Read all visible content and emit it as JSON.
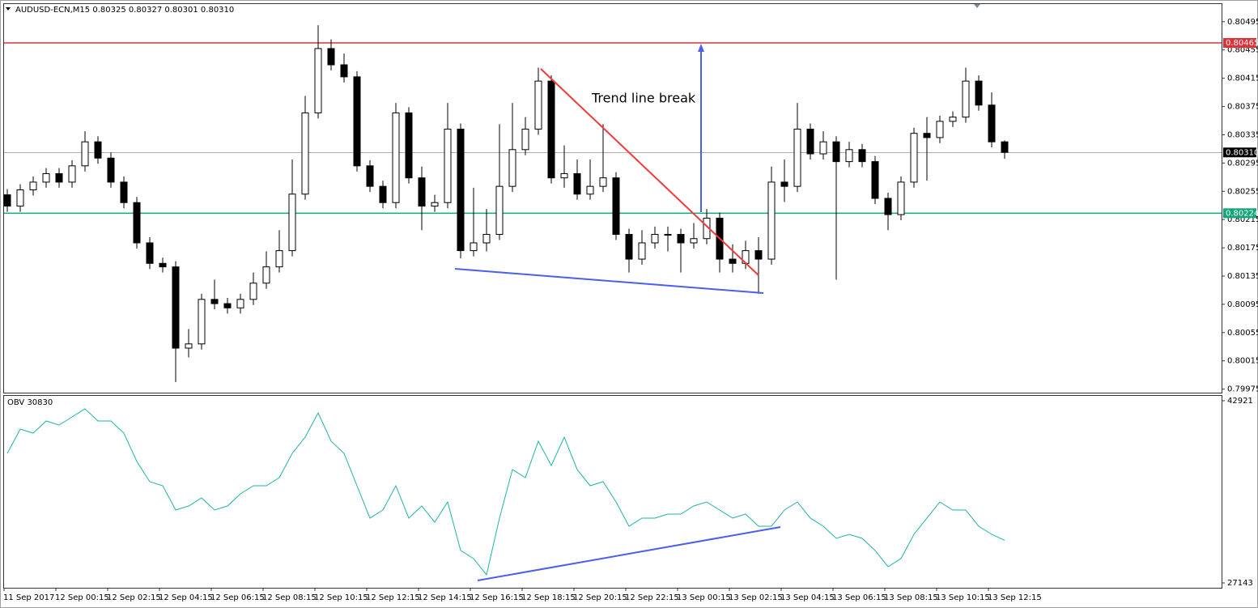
{
  "chart_data": [
    {
      "type": "candlestick",
      "title": "AUDUSD-ECN,M15  0.80325 0.80327 0.80301 0.80310",
      "annotation": "Trend line break",
      "up_color": "#ffffff",
      "down_color": "#000000",
      "categories": [
        "11 Sep 2017",
        null,
        null,
        null,
        "12 Sep 00:15",
        null,
        null,
        null,
        "12 Sep 02:15",
        null,
        null,
        null,
        "12 Sep 04:15",
        null,
        null,
        null,
        "12 Sep 06:15",
        null,
        null,
        null,
        "12 Sep 08:15",
        null,
        null,
        null,
        "12 Sep 10:15",
        null,
        null,
        null,
        "12 Sep 12:15",
        null,
        null,
        null,
        "12 Sep 14:15",
        null,
        null,
        null,
        "12 Sep 16:15",
        null,
        null,
        null,
        "12 Sep 18:15",
        null,
        null,
        null,
        "12 Sep 20:15",
        null,
        null,
        null,
        "12 Sep 22:15",
        null,
        null,
        null,
        "13 Sep 00:15",
        null,
        null,
        null,
        "13 Sep 02:15",
        null,
        null,
        null,
        "13 Sep 04:15",
        null,
        null,
        null,
        "13 Sep 06:15",
        null,
        null,
        null,
        "13 Sep 08:15",
        null,
        null,
        null,
        "13 Sep 10:15",
        null,
        null,
        null,
        "13 Sep 12:15",
        null
      ],
      "ohlc": [
        [
          0.8025,
          0.80258,
          0.80226,
          0.80234
        ],
        [
          0.80234,
          0.80265,
          0.80226,
          0.80257
        ],
        [
          0.80257,
          0.80276,
          0.80249,
          0.80268
        ],
        [
          0.80268,
          0.80288,
          0.8026,
          0.8028
        ],
        [
          0.8028,
          0.80288,
          0.8026,
          0.80268
        ],
        [
          0.80268,
          0.80299,
          0.8026,
          0.80291
        ],
        [
          0.80291,
          0.8034,
          0.80283,
          0.80325
        ],
        [
          0.80325,
          0.80333,
          0.80294,
          0.80302
        ],
        [
          0.80302,
          0.8031,
          0.8026,
          0.80268
        ],
        [
          0.80268,
          0.80276,
          0.80231,
          0.80239
        ],
        [
          0.80239,
          0.80247,
          0.80174,
          0.80182
        ],
        [
          0.80182,
          0.8019,
          0.80145,
          0.80153
        ],
        [
          0.80153,
          0.80161,
          0.8014,
          0.80148
        ],
        [
          0.80148,
          0.80156,
          0.79985,
          0.80033
        ],
        [
          0.80033,
          0.8006,
          0.8002,
          0.80039
        ],
        [
          0.80039,
          0.8011,
          0.80031,
          0.80102
        ],
        [
          0.80102,
          0.8013,
          0.80088,
          0.80096
        ],
        [
          0.80096,
          0.80104,
          0.80082,
          0.8009
        ],
        [
          0.8009,
          0.8011,
          0.80082,
          0.80102
        ],
        [
          0.80102,
          0.8014,
          0.80094,
          0.80125
        ],
        [
          0.80125,
          0.8017,
          0.80117,
          0.80148
        ],
        [
          0.80148,
          0.802,
          0.8014,
          0.80171
        ],
        [
          0.80171,
          0.803,
          0.80163,
          0.80251
        ],
        [
          0.80251,
          0.8039,
          0.80243,
          0.80366
        ],
        [
          0.80366,
          0.8049,
          0.80358,
          0.80457
        ],
        [
          0.80457,
          0.8047,
          0.80426,
          0.80434
        ],
        [
          0.80434,
          0.8045,
          0.80409,
          0.80417
        ],
        [
          0.80417,
          0.80425,
          0.80283,
          0.80291
        ],
        [
          0.80291,
          0.80299,
          0.80254,
          0.80262
        ],
        [
          0.80262,
          0.8027,
          0.80231,
          0.80239
        ],
        [
          0.80239,
          0.8038,
          0.80231,
          0.80366
        ],
        [
          0.80366,
          0.80374,
          0.80266,
          0.80274
        ],
        [
          0.80274,
          0.8029,
          0.802,
          0.80234
        ],
        [
          0.80234,
          0.8025,
          0.80226,
          0.80239
        ],
        [
          0.80239,
          0.8038,
          0.80231,
          0.80343
        ],
        [
          0.80343,
          0.80351,
          0.8016,
          0.80171
        ],
        [
          0.80171,
          0.8026,
          0.80163,
          0.80182
        ],
        [
          0.80182,
          0.8023,
          0.8017,
          0.80194
        ],
        [
          0.80194,
          0.8035,
          0.80186,
          0.80262
        ],
        [
          0.80262,
          0.8038,
          0.80254,
          0.80314
        ],
        [
          0.80314,
          0.8036,
          0.80306,
          0.80343
        ],
        [
          0.80343,
          0.8043,
          0.80335,
          0.80411
        ],
        [
          0.80411,
          0.80419,
          0.80266,
          0.80274
        ],
        [
          0.80274,
          0.8032,
          0.8026,
          0.8028
        ],
        [
          0.8028,
          0.803,
          0.80243,
          0.80251
        ],
        [
          0.80251,
          0.803,
          0.80243,
          0.80262
        ],
        [
          0.80262,
          0.8035,
          0.80254,
          0.80274
        ],
        [
          0.80274,
          0.80282,
          0.80186,
          0.80194
        ],
        [
          0.80194,
          0.80202,
          0.8014,
          0.80159
        ],
        [
          0.80159,
          0.802,
          0.80151,
          0.80182
        ],
        [
          0.80182,
          0.80205,
          0.80174,
          0.80194
        ],
        [
          0.80194,
          0.80205,
          0.8017,
          0.80194
        ],
        [
          0.80194,
          0.80202,
          0.8014,
          0.80182
        ],
        [
          0.80182,
          0.8021,
          0.80174,
          0.80188
        ],
        [
          0.80188,
          0.8023,
          0.8018,
          0.80217
        ],
        [
          0.80217,
          0.80225,
          0.8014,
          0.80159
        ],
        [
          0.80159,
          0.8018,
          0.8014,
          0.80153
        ],
        [
          0.80153,
          0.80185,
          0.80145,
          0.80171
        ],
        [
          0.80171,
          0.8019,
          0.8011,
          0.80159
        ],
        [
          0.80159,
          0.8029,
          0.80151,
          0.80268
        ],
        [
          0.80268,
          0.803,
          0.8024,
          0.80262
        ],
        [
          0.80262,
          0.8038,
          0.80254,
          0.80343
        ],
        [
          0.80343,
          0.80351,
          0.803,
          0.80308
        ],
        [
          0.80308,
          0.8034,
          0.803,
          0.80325
        ],
        [
          0.80325,
          0.80333,
          0.8013,
          0.80297
        ],
        [
          0.80297,
          0.80325,
          0.80289,
          0.80314
        ],
        [
          0.80314,
          0.80322,
          0.80289,
          0.80297
        ],
        [
          0.80297,
          0.80305,
          0.80237,
          0.80245
        ],
        [
          0.80245,
          0.80253,
          0.802,
          0.80222
        ],
        [
          0.80222,
          0.80276,
          0.80214,
          0.80268
        ],
        [
          0.80268,
          0.80345,
          0.8026,
          0.80337
        ],
        [
          0.80337,
          0.8036,
          0.8027,
          0.80331
        ],
        [
          0.80331,
          0.80362,
          0.80323,
          0.80354
        ],
        [
          0.80354,
          0.80368,
          0.80346,
          0.8036
        ],
        [
          0.8036,
          0.8043,
          0.80352,
          0.80411
        ],
        [
          0.80411,
          0.80419,
          0.80369,
          0.80377
        ],
        [
          0.80377,
          0.80395,
          0.80317,
          0.80325
        ],
        [
          0.80325,
          0.80327,
          0.80301,
          0.8031
        ]
      ],
      "ylim": [
        0.7997,
        0.8052
      ],
      "yticks": [
        0.80495,
        0.80455,
        0.80415,
        0.80375,
        0.80335,
        0.80295,
        0.80255,
        0.80215,
        0.80175,
        0.80135,
        0.80095,
        0.80055,
        0.80015,
        0.79975
      ],
      "levels": [
        {
          "value": 0.80465,
          "label": "0.80465",
          "color": "#e0313b"
        },
        {
          "value": 0.8031,
          "label": "0.80310",
          "color": "#000000"
        },
        {
          "value": 0.80224,
          "label": "0.80224",
          "color": "#14a57a"
        }
      ]
    },
    {
      "type": "line",
      "title": "OBV 30830",
      "color": "#20b2aa",
      "values": [
        38363,
        40467,
        40116,
        41168,
        40817,
        41519,
        42220,
        41168,
        41168,
        40116,
        37662,
        35909,
        35558,
        33455,
        33805,
        34507,
        33455,
        33805,
        34857,
        35558,
        35558,
        36260,
        38363,
        39766,
        41869,
        39415,
        38363,
        35558,
        32754,
        33455,
        35558,
        32754,
        33805,
        32403,
        34156,
        29949,
        29248,
        27845,
        32754,
        36961,
        36260,
        39415,
        37311,
        39766,
        36961,
        35558,
        35909,
        34156,
        32052,
        32754,
        32754,
        33104,
        33104,
        33805,
        34156,
        33455,
        32754,
        33104,
        32052,
        32052,
        33455,
        34156,
        32754,
        32052,
        31001,
        31351,
        31001,
        29949,
        28546,
        29248,
        31351,
        32754,
        34156,
        33455,
        33455,
        32052,
        31351,
        30830
      ],
      "ylim": [
        26722,
        43342
      ],
      "yticks": [
        27143,
        42921
      ]
    }
  ]
}
